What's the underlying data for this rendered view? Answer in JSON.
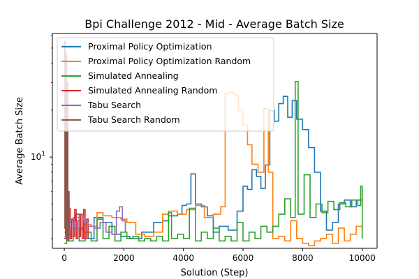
{
  "chart_data": {
    "type": "line",
    "title": "Bpi Challenge 2012 - Mid - Average Batch Size",
    "xlabel": "Solution (Step)",
    "ylabel": "Average Batch Size",
    "x_range": [
      -400,
      10500
    ],
    "y_range": [
      2.6,
      62
    ],
    "y_scale": "log",
    "x_ticks": [
      0,
      2000,
      4000,
      6000,
      8000,
      10000
    ],
    "x_tick_labels": [
      "0",
      "2000",
      "4000",
      "6000",
      "8000",
      "10000"
    ],
    "y_ticks": [
      10
    ],
    "y_tick_labels": [
      "10"
    ],
    "y_tick_superscripts": [
      "1"
    ],
    "grid": false,
    "legend_position": "upper-left",
    "series": [
      {
        "name": "Proximal Policy Optimization",
        "color": "#1f77b4",
        "points": [
          [
            0,
            3.0
          ],
          [
            120,
            3.2
          ],
          [
            250,
            3.9
          ],
          [
            380,
            4.3
          ],
          [
            500,
            3.5
          ],
          [
            650,
            3.8
          ],
          [
            800,
            3.0
          ],
          [
            1000,
            4.1
          ],
          [
            1300,
            3.8
          ],
          [
            1600,
            3.2
          ],
          [
            1900,
            3.1
          ],
          [
            2200,
            3.0
          ],
          [
            2600,
            3.3
          ],
          [
            3000,
            3.8
          ],
          [
            3300,
            3.9
          ],
          [
            3500,
            4.2
          ],
          [
            3800,
            4.3
          ],
          [
            3950,
            4.9
          ],
          [
            4100,
            5.0
          ],
          [
            4250,
            7.8
          ],
          [
            4400,
            5.0
          ],
          [
            4600,
            4.8
          ],
          [
            4800,
            4.2
          ],
          [
            5000,
            3.3
          ],
          [
            5200,
            3.6
          ],
          [
            5500,
            3.4
          ],
          [
            5800,
            4.5
          ],
          [
            6000,
            6.5
          ],
          [
            6150,
            6.2
          ],
          [
            6300,
            8.3
          ],
          [
            6450,
            7.5
          ],
          [
            6600,
            6.3
          ],
          [
            6750,
            8.9
          ],
          [
            6900,
            19.8
          ],
          [
            7050,
            17.0
          ],
          [
            7200,
            22.0
          ],
          [
            7350,
            24.5
          ],
          [
            7500,
            18.0
          ],
          [
            7650,
            23.0
          ],
          [
            7800,
            17.5
          ],
          [
            8000,
            15.0
          ],
          [
            8200,
            11.5
          ],
          [
            8400,
            8.0
          ],
          [
            8600,
            4.5
          ],
          [
            8800,
            3.4
          ],
          [
            9000,
            3.8
          ],
          [
            9200,
            5.0
          ],
          [
            9400,
            5.3
          ],
          [
            9600,
            4.8
          ],
          [
            9800,
            5.3
          ],
          [
            10000,
            5.2
          ]
        ]
      },
      {
        "name": "Proximal Policy Optimization Random",
        "color": "#ff7f0e",
        "points": [
          [
            0,
            3.3
          ],
          [
            150,
            3.8
          ],
          [
            300,
            4.1
          ],
          [
            500,
            3.4
          ],
          [
            700,
            3.7
          ],
          [
            900,
            3.6
          ],
          [
            1100,
            4.4
          ],
          [
            1300,
            4.2
          ],
          [
            1600,
            4.1
          ],
          [
            1900,
            4.0
          ],
          [
            2100,
            3.8
          ],
          [
            2400,
            3.2
          ],
          [
            2700,
            3.1
          ],
          [
            3000,
            3.3
          ],
          [
            3300,
            4.3
          ],
          [
            3500,
            4.5
          ],
          [
            3800,
            4.3
          ],
          [
            4100,
            4.6
          ],
          [
            4400,
            4.9
          ],
          [
            4700,
            4.1
          ],
          [
            5000,
            4.3
          ],
          [
            5250,
            4.8
          ],
          [
            5400,
            25.5
          ],
          [
            5550,
            26.0
          ],
          [
            5700,
            25.0
          ],
          [
            5850,
            20.0
          ],
          [
            6000,
            16.0
          ],
          [
            6150,
            12.0
          ],
          [
            6300,
            9.0
          ],
          [
            6500,
            8.0
          ],
          [
            6700,
            20.5
          ],
          [
            6850,
            8.0
          ],
          [
            7000,
            3.0
          ],
          [
            7200,
            3.1
          ],
          [
            7400,
            2.9
          ],
          [
            7600,
            3.9
          ],
          [
            7800,
            3.0
          ],
          [
            8000,
            2.8
          ],
          [
            8200,
            2.7
          ],
          [
            8400,
            2.9
          ],
          [
            8600,
            3.0
          ],
          [
            8800,
            3.2
          ],
          [
            9000,
            2.8
          ],
          [
            9200,
            3.5
          ],
          [
            9400,
            2.9
          ],
          [
            9600,
            3.2
          ],
          [
            9800,
            3.6
          ],
          [
            10000,
            3.0
          ]
        ]
      },
      {
        "name": "Simulated Annealing",
        "color": "#2ca02c",
        "points": [
          [
            0,
            2.8
          ],
          [
            80,
            5.5
          ],
          [
            160,
            2.9
          ],
          [
            300,
            3.5
          ],
          [
            500,
            2.9
          ],
          [
            700,
            3.3
          ],
          [
            900,
            2.9
          ],
          [
            1100,
            4.0
          ],
          [
            1300,
            3.0
          ],
          [
            1500,
            3.6
          ],
          [
            1700,
            2.9
          ],
          [
            1900,
            3.3
          ],
          [
            2100,
            3.0
          ],
          [
            2300,
            3.1
          ],
          [
            2500,
            2.9
          ],
          [
            2700,
            3.0
          ],
          [
            2900,
            2.9
          ],
          [
            3100,
            3.1
          ],
          [
            3300,
            2.9
          ],
          [
            3500,
            4.4
          ],
          [
            3600,
            3.0
          ],
          [
            3800,
            3.2
          ],
          [
            4000,
            3.0
          ],
          [
            4200,
            4.7
          ],
          [
            4400,
            2.9
          ],
          [
            4600,
            3.3
          ],
          [
            4800,
            3.0
          ],
          [
            5000,
            3.5
          ],
          [
            5200,
            2.9
          ],
          [
            5400,
            3.1
          ],
          [
            5600,
            2.9
          ],
          [
            5800,
            3.8
          ],
          [
            6000,
            2.9
          ],
          [
            6200,
            3.3
          ],
          [
            6400,
            3.0
          ],
          [
            6600,
            3.6
          ],
          [
            6800,
            3.3
          ],
          [
            7000,
            3.6
          ],
          [
            7200,
            4.3
          ],
          [
            7400,
            5.4
          ],
          [
            7600,
            4.1
          ],
          [
            7750,
            30.5
          ],
          [
            7850,
            4.3
          ],
          [
            8050,
            7.7
          ],
          [
            8250,
            4.1
          ],
          [
            8450,
            5.0
          ],
          [
            8650,
            4.4
          ],
          [
            8850,
            5.2
          ],
          [
            9050,
            4.6
          ],
          [
            9250,
            5.1
          ],
          [
            9450,
            4.8
          ],
          [
            9650,
            5.3
          ],
          [
            9850,
            4.9
          ],
          [
            9950,
            6.5
          ],
          [
            10000,
            3.0
          ]
        ]
      },
      {
        "name": "Simulated Annealing Random",
        "color": "#d62728",
        "points": [
          [
            0,
            3.0
          ],
          [
            50,
            4.2
          ],
          [
            100,
            3.2
          ],
          [
            150,
            4.7
          ],
          [
            200,
            3.0
          ],
          [
            250,
            4.0
          ],
          [
            300,
            3.1
          ],
          [
            350,
            4.6
          ],
          [
            400,
            3.0
          ],
          [
            450,
            3.9
          ],
          [
            500,
            3.1
          ],
          [
            550,
            4.3
          ],
          [
            600,
            3.0
          ],
          [
            650,
            4.6
          ],
          [
            700,
            3.0
          ],
          [
            750,
            4.0
          ],
          [
            800,
            3.1
          ]
        ]
      },
      {
        "name": "Tabu Search",
        "color": "#9467bd",
        "points": [
          [
            0,
            3.1
          ],
          [
            100,
            3.6
          ],
          [
            200,
            3.9
          ],
          [
            350,
            3.5
          ],
          [
            500,
            4.2
          ],
          [
            650,
            3.8
          ],
          [
            800,
            3.6
          ],
          [
            1000,
            3.5
          ],
          [
            1200,
            3.8
          ],
          [
            1400,
            3.3
          ],
          [
            1600,
            3.2
          ],
          [
            1750,
            4.5
          ],
          [
            1850,
            4.8
          ],
          [
            1950,
            3.9
          ],
          [
            2050,
            3.3
          ]
        ]
      },
      {
        "name": "Tabu Search Random",
        "color": "#8c564b",
        "points": [
          [
            0,
            3.5
          ],
          [
            20,
            55.0
          ],
          [
            40,
            3.2
          ],
          [
            60,
            45.0
          ],
          [
            80,
            3.0
          ],
          [
            100,
            30.0
          ],
          [
            120,
            2.9
          ],
          [
            140,
            6.0
          ],
          [
            160,
            3.1
          ]
        ]
      }
    ]
  }
}
